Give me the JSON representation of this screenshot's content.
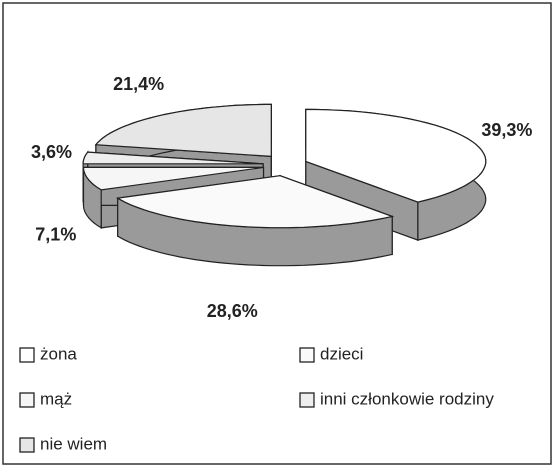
{
  "chart_data": {
    "type": "pie3d",
    "categories": [
      "żona",
      "dzieci",
      "mąż",
      "inni członkowie rodziny",
      "nie wiem"
    ],
    "values": [
      39.3,
      28.6,
      7.1,
      3.6,
      21.4
    ],
    "value_labels": [
      "39,3%",
      "28,6%",
      "7,1%",
      "3,6%",
      "21,4%"
    ],
    "colors": [
      "#ffffff",
      "#fafafa",
      "#f6f6f6",
      "#eeeeee",
      "#e6e6e6"
    ],
    "side_color": "#9a9a9a",
    "legend": "bottom"
  }
}
